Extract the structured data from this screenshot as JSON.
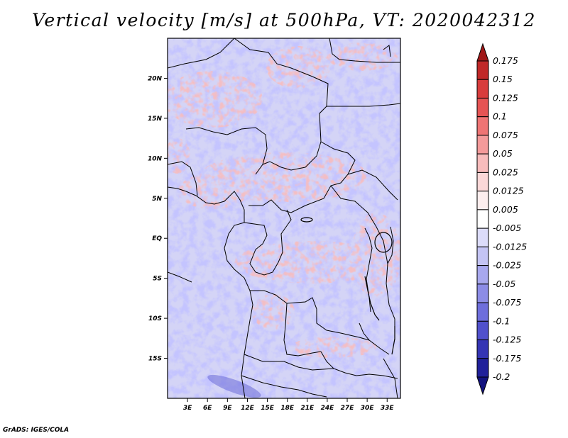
{
  "title": "Vertical velocity [m/s] at 500hPa, VT: 2020042312",
  "footer": "GrADS: IGES/COLA",
  "lat_labels": [
    "20N",
    "15N",
    "10N",
    "5N",
    "EQ",
    "5S",
    "10S",
    "15S"
  ],
  "lat_values": [
    20,
    15,
    10,
    5,
    0,
    -5,
    -10,
    -15
  ],
  "lon_labels": [
    "3E",
    "6E",
    "9E",
    "12E",
    "15E",
    "18E",
    "21E",
    "24E",
    "27E",
    "30E",
    "33E"
  ],
  "lon_values": [
    3,
    6,
    9,
    12,
    15,
    18,
    21,
    24,
    27,
    30,
    33
  ],
  "lat_range": [
    -20,
    25
  ],
  "lon_range": [
    0,
    35
  ],
  "colorbar": {
    "labels": [
      "0.175",
      "0.15",
      "0.125",
      "0.1",
      "0.075",
      "0.05",
      "0.025",
      "0.0125",
      "0.005",
      "-0.005",
      "-0.0125",
      "-0.025",
      "-0.05",
      "-0.075",
      "-0.1",
      "-0.125",
      "-0.175",
      "-0.2"
    ],
    "colors": [
      "#a01818",
      "#c02828",
      "#d83c3c",
      "#e65454",
      "#ef7474",
      "#f49a9a",
      "#f8bcbc",
      "#fbd8d8",
      "#fdeeee",
      "#ffffff",
      "#dcdcfa",
      "#c4c4f4",
      "#a8a8ee",
      "#8c8ce6",
      "#6e6edc",
      "#5050cc",
      "#3434b4",
      "#20209a",
      "#12127e"
    ]
  },
  "colors": {
    "background": "#ffffff",
    "border": "#000000"
  }
}
